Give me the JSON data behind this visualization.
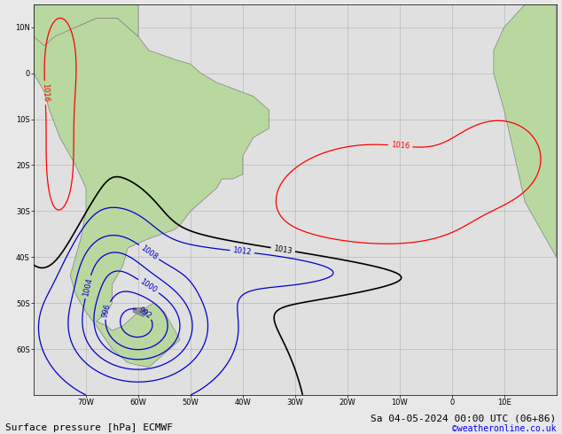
{
  "title_bottom": "Surface pressure [hPa] ECMWF",
  "date_str": "Sa 04-05-2024 00:00 UTC (06+86)",
  "copyright": "©weatheronline.co.uk",
  "bg_color": "#e8e8e8",
  "ocean_color": "#e0e0e0",
  "land_color": "#b8d8a0",
  "land_edge_color": "#808080",
  "grid_color": "#b0b0b0",
  "xlim": [
    -80,
    20
  ],
  "ylim": [
    -70,
    15
  ],
  "xticks": [
    -70,
    -60,
    -50,
    -40,
    -30,
    -20,
    -10,
    0,
    10
  ],
  "yticks": [
    -60,
    -50,
    -40,
    -30,
    -20,
    -10,
    0,
    10
  ],
  "label_fontsize": 7,
  "bottom_fontsize": 8
}
